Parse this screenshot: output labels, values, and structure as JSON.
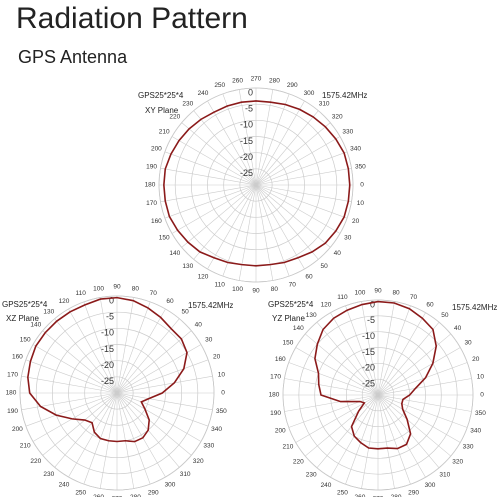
{
  "title": "Radiation Pattern",
  "subtitle": "GPS Antenna",
  "chart_data": [
    {
      "type": "polar",
      "label": "GPS25*25*4",
      "plane": "XY Plane",
      "frequency": "1575.42MHz",
      "direction": "clockwise",
      "zero_location": "E",
      "rlim": [
        -30,
        0
      ],
      "rticks": [
        0,
        -5,
        -10,
        -15,
        -20,
        -25
      ],
      "thetaticks": [
        0,
        10,
        20,
        30,
        40,
        50,
        60,
        70,
        80,
        90,
        100,
        110,
        120,
        130,
        140,
        150,
        160,
        170,
        180,
        190,
        200,
        210,
        220,
        230,
        240,
        250,
        260,
        270,
        280,
        290,
        300,
        310,
        320,
        330,
        340,
        350
      ],
      "color": "#8b1a1a",
      "theta": [
        0,
        10,
        20,
        30,
        40,
        50,
        60,
        70,
        80,
        90,
        100,
        110,
        120,
        130,
        140,
        150,
        160,
        170,
        180,
        190,
        200,
        210,
        220,
        230,
        240,
        250,
        260,
        270,
        280,
        290,
        300,
        310,
        320,
        330,
        340,
        350
      ],
      "values": [
        -1,
        -1,
        -1,
        -1.5,
        -2,
        -3,
        -4,
        -4.5,
        -5,
        -5,
        -5,
        -4.5,
        -4,
        -3,
        -2.5,
        -2,
        -1.5,
        -1.5,
        -1.5,
        -1.5,
        -2,
        -2.5,
        -3,
        -3.5,
        -4,
        -4,
        -4,
        -4,
        -4,
        -3.5,
        -3,
        -2.5,
        -2,
        -1.5,
        -1,
        -1
      ]
    },
    {
      "type": "polar",
      "label": "GPS25*25*4",
      "plane": "XZ Plane",
      "frequency": "1575.42MHz",
      "direction": "counterclockwise",
      "zero_location": "E",
      "rlim": [
        -30,
        0
      ],
      "rticks": [
        0,
        -5,
        -10,
        -15,
        -20,
        -25
      ],
      "thetaticks": [
        0,
        10,
        20,
        30,
        40,
        50,
        60,
        70,
        80,
        90,
        100,
        110,
        120,
        130,
        140,
        150,
        160,
        170,
        180,
        190,
        200,
        210,
        220,
        230,
        240,
        250,
        260,
        270,
        280,
        290,
        300,
        310,
        320,
        330,
        340,
        350
      ],
      "color": "#8b1a1a",
      "theta": [
        0,
        10,
        20,
        30,
        40,
        50,
        60,
        70,
        80,
        90,
        100,
        110,
        120,
        130,
        140,
        150,
        160,
        170,
        180,
        190,
        200,
        210,
        220,
        230,
        240,
        250,
        260,
        270,
        280,
        290,
        300,
        310,
        320,
        330,
        340,
        350
      ],
      "values": [
        -16,
        -12,
        -8,
        -5,
        -4,
        -4,
        -3,
        -2,
        -1,
        -0.5,
        -0.5,
        -1,
        -1,
        -1,
        -1,
        -1,
        -1.5,
        -2,
        -3,
        -6,
        -10,
        -14,
        -17,
        -18,
        -16,
        -15,
        -15,
        -15,
        -15,
        -14,
        -14,
        -15,
        -17,
        -20,
        -22,
        -20
      ]
    },
    {
      "type": "polar",
      "label": "GPS25*25*4",
      "plane": "YZ Plane",
      "frequency": "1575.42MHz",
      "direction": "counterclockwise",
      "zero_location": "E",
      "rlim": [
        -30,
        0
      ],
      "rticks": [
        0,
        -5,
        -10,
        -15,
        -20,
        -25
      ],
      "thetaticks": [
        0,
        10,
        20,
        30,
        40,
        50,
        60,
        70,
        80,
        90,
        100,
        110,
        120,
        130,
        140,
        150,
        160,
        170,
        180,
        190,
        200,
        210,
        220,
        230,
        240,
        250,
        260,
        270,
        280,
        290,
        300,
        310,
        320,
        330,
        340,
        350
      ],
      "color": "#8b1a1a",
      "theta": [
        0,
        10,
        20,
        30,
        40,
        50,
        60,
        70,
        80,
        90,
        100,
        110,
        120,
        130,
        140,
        150,
        160,
        170,
        180,
        190,
        200,
        210,
        220,
        230,
        240,
        250,
        260,
        270,
        280,
        290,
        300,
        310,
        320,
        330,
        340,
        350
      ],
      "values": [
        -20,
        -18,
        -14,
        -10,
        -6,
        -3,
        -2,
        -1,
        -0.5,
        -0.5,
        -1,
        -1.5,
        -2,
        -3,
        -5,
        -7,
        -10,
        -11,
        -12,
        -18,
        -24,
        -25,
        -22,
        -17,
        -15,
        -14,
        -13,
        -13,
        -13,
        -12,
        -12,
        -14,
        -18,
        -21,
        -22,
        -22
      ]
    }
  ]
}
